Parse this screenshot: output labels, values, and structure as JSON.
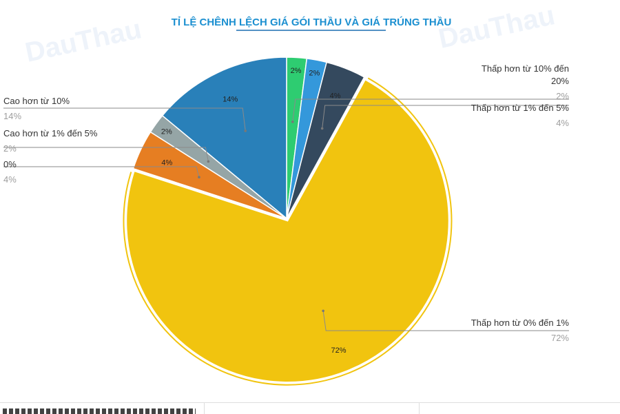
{
  "watermark": "DauThau",
  "chart_data": {
    "type": "pie",
    "title": "TỈ LỆ CHÊNH LỆCH GIÁ GÓI THẦU VÀ GIÁ TRÚNG THẦU",
    "slices": [
      {
        "category": "Thấp hơn từ 10% đến 20%",
        "value": 2,
        "label": "2%",
        "color": "#2ecc71"
      },
      {
        "category": "",
        "value": 2,
        "label": "2%",
        "color": "#3498db"
      },
      {
        "category": "Thấp hơn từ 1% đến 5%",
        "value": 4,
        "label": "4%",
        "color": "#34495e"
      },
      {
        "category": "Thấp hơn từ 0% đến 1%",
        "value": 72,
        "label": "72%",
        "color": "#f1c40f"
      },
      {
        "category": "0%",
        "value": 4,
        "label": "4%",
        "color": "#e67e22"
      },
      {
        "category": "Cao hơn từ 1% đến 5%",
        "value": 2,
        "label": "2%",
        "color": "#95a5a6"
      },
      {
        "category": "Cao hơn từ 10%",
        "value": 14,
        "label": "14%",
        "color": "#2980b9"
      }
    ],
    "exploded_category": "Thấp hơn từ 0% đến 1%"
  }
}
